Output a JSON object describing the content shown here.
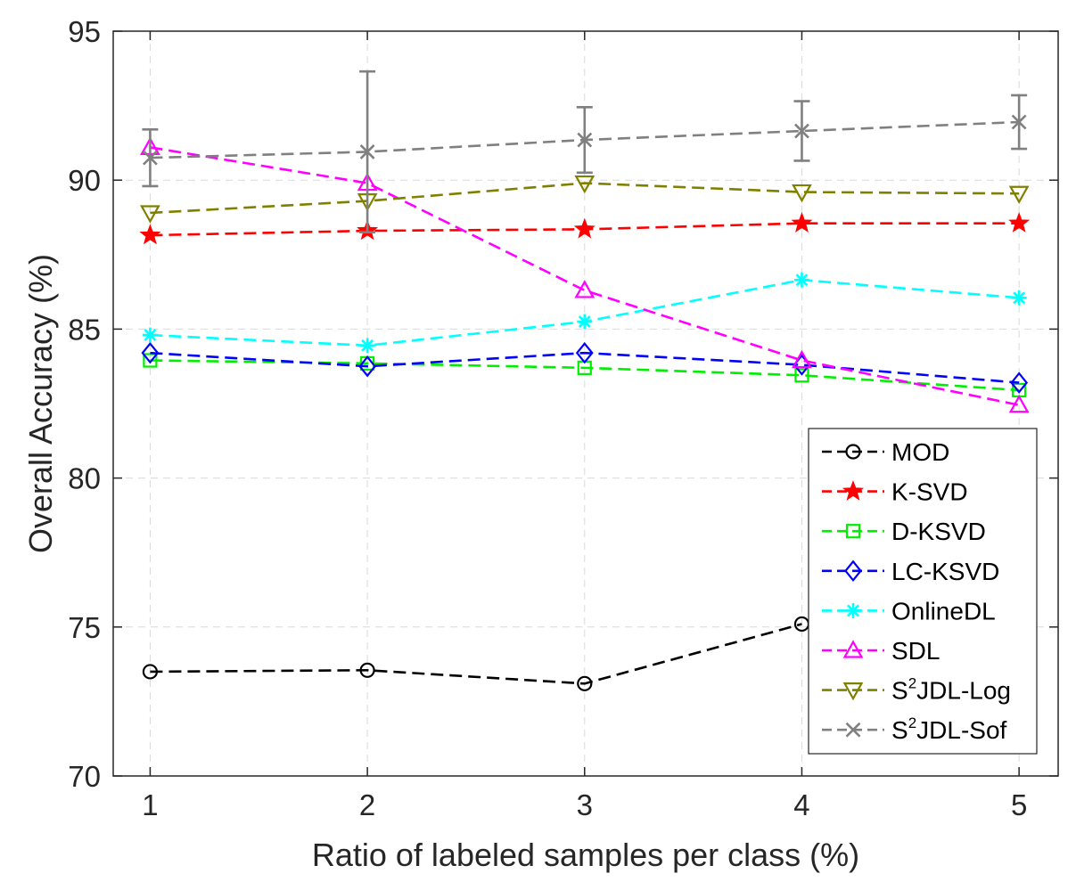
{
  "chart_data": {
    "type": "line",
    "title": "",
    "xlabel": "Ratio of labeled samples per class (%)",
    "ylabel": "Overall Accuracy (%)",
    "x": [
      1,
      2,
      3,
      4,
      5
    ],
    "xticks": [
      "1",
      "2",
      "3",
      "4",
      "5"
    ],
    "xlim": [
      0.83,
      5.18
    ],
    "ylim": [
      70,
      95
    ],
    "yticks": [
      "70",
      "75",
      "80",
      "85",
      "90",
      "95"
    ],
    "grid": true,
    "legend_position": "bottom-right",
    "series": [
      {
        "name": "MOD",
        "legend_main": "MOD",
        "legend_sup": "",
        "legend_tail": "",
        "color": "#000000",
        "marker": "circle",
        "values": [
          73.5,
          73.55,
          73.1,
          75.1,
          null
        ]
      },
      {
        "name": "K-SVD",
        "legend_main": "K-SVD",
        "legend_sup": "",
        "legend_tail": "",
        "color": "#ff0000",
        "marker": "star",
        "values": [
          88.15,
          88.3,
          88.35,
          88.55,
          88.55
        ]
      },
      {
        "name": "D-KSVD",
        "legend_main": "D-KSVD",
        "legend_sup": "",
        "legend_tail": "",
        "color": "#00ee00",
        "marker": "square",
        "values": [
          83.95,
          83.85,
          83.7,
          83.45,
          82.95
        ]
      },
      {
        "name": "LC-KSVD",
        "legend_main": "LC-KSVD",
        "legend_sup": "",
        "legend_tail": "",
        "color": "#0000ff",
        "marker": "diamond",
        "values": [
          84.2,
          83.75,
          84.2,
          83.8,
          83.2
        ]
      },
      {
        "name": "OnlineDL",
        "legend_main": "OnlineDL",
        "legend_sup": "",
        "legend_tail": "",
        "color": "#00ffff",
        "marker": "asterisk",
        "values": [
          84.8,
          84.45,
          85.25,
          86.65,
          86.05
        ]
      },
      {
        "name": "SDL",
        "legend_main": "SDL",
        "legend_sup": "",
        "legend_tail": "",
        "color": "#ff00ff",
        "marker": "triangle-up",
        "values": [
          91.1,
          89.9,
          86.3,
          83.95,
          82.45
        ]
      },
      {
        "name": "S2JDL-Log",
        "legend_main": "S",
        "legend_sup": "2",
        "legend_tail": "JDL-Log",
        "color": "#808000",
        "marker": "triangle-down",
        "values": [
          88.9,
          89.3,
          89.9,
          89.6,
          89.55
        ]
      },
      {
        "name": "S2JDL-Sof",
        "legend_main": "S",
        "legend_sup": "2",
        "legend_tail": "JDL-Sof",
        "color": "#808080",
        "marker": "x",
        "values": [
          90.75,
          90.95,
          91.35,
          91.65,
          91.95
        ],
        "error_low": [
          89.8,
          88.25,
          90.25,
          90.65,
          91.05
        ],
        "error_high": [
          91.7,
          93.65,
          92.45,
          92.65,
          92.85
        ]
      }
    ]
  }
}
